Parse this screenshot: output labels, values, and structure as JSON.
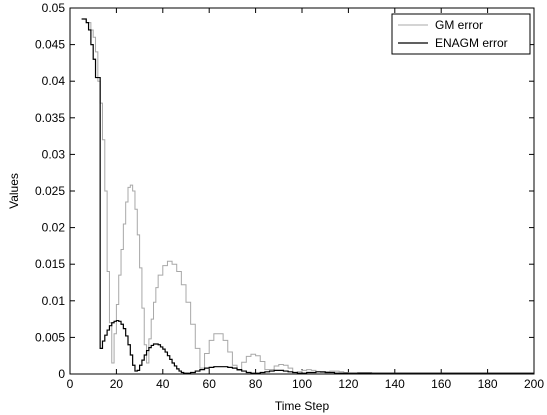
{
  "chart_data": {
    "type": "line",
    "title": "",
    "xlabel": "Time Step",
    "ylabel": "Values",
    "xlim": [
      0,
      200
    ],
    "ylim": [
      0,
      0.05
    ],
    "grid": false,
    "legend_position": "top-right",
    "x_ticks": [
      "0",
      "20",
      "40",
      "60",
      "80",
      "100",
      "120",
      "140",
      "160",
      "180",
      "200"
    ],
    "y_ticks": [
      "0",
      "0.005",
      "0.01",
      "0.015",
      "0.02",
      "0.025",
      "0.03",
      "0.035",
      "0.04",
      "0.045",
      "0.05"
    ],
    "step_style": true,
    "series": [
      {
        "name": "GM error",
        "color": "#a8a8a8",
        "x": [
          5,
          7,
          9,
          10,
          11,
          12,
          13,
          14,
          15,
          16,
          17,
          18,
          19,
          20,
          21,
          22,
          23,
          24,
          25,
          26,
          27,
          28,
          29,
          30,
          31,
          32,
          33,
          34,
          35,
          36,
          37,
          38,
          40,
          42,
          44,
          46,
          48,
          50,
          52,
          54,
          56,
          58,
          60,
          62,
          64,
          66,
          68,
          70,
          72,
          74,
          76,
          78,
          80,
          82,
          84,
          86,
          88,
          90,
          92,
          94,
          96,
          98,
          100,
          102,
          104,
          106,
          108,
          110,
          112,
          114,
          116,
          118,
          120,
          122,
          124,
          126,
          128,
          130,
          132,
          134,
          136,
          138,
          140,
          142,
          144,
          146,
          148,
          150,
          152,
          154,
          156,
          158,
          160,
          162,
          164,
          166,
          168,
          170,
          172,
          174,
          176,
          178,
          180,
          182,
          184,
          186,
          188,
          190,
          192,
          194,
          196,
          198,
          200
        ],
        "y": [
          0.0485,
          0.048,
          0.047,
          0.046,
          0.044,
          0.04,
          0.037,
          0.032,
          0.025,
          0.014,
          0.007,
          0.0015,
          0.0055,
          0.0095,
          0.0135,
          0.017,
          0.0205,
          0.0235,
          0.0255,
          0.0258,
          0.025,
          0.0225,
          0.019,
          0.0145,
          0.009,
          0.004,
          0.0015,
          0.0048,
          0.0075,
          0.0098,
          0.0118,
          0.0135,
          0.0148,
          0.0154,
          0.015,
          0.014,
          0.0122,
          0.0098,
          0.0068,
          0.0035,
          0.0008,
          0.0028,
          0.0046,
          0.0055,
          0.0055,
          0.0046,
          0.003,
          0.0012,
          0.0005,
          0.0016,
          0.0024,
          0.0027,
          0.0025,
          0.0017,
          0.0006,
          0.0006,
          0.0011,
          0.0013,
          0.0012,
          0.0008,
          0.0002,
          0.0003,
          0.0005,
          0.0006,
          0.0005,
          0.0003,
          0.0002,
          0.0003,
          0.0004,
          0.0004,
          0.0003,
          0.0002,
          0.0001,
          0.0001,
          0.0002,
          0.0002,
          0.0002,
          0.0001,
          0.0001,
          0.0001,
          0.0001,
          0.0001,
          0.0001,
          0.0001,
          0.0001,
          0.0001,
          0.0001,
          0.0001,
          0.0001,
          0.0001,
          0.0001,
          0.0001,
          0.0001,
          0.0001,
          0.0001,
          0.0001,
          0.0001,
          0.0001,
          0.0001,
          0.0001,
          0.0001,
          0.0001,
          0.0001,
          0.0001,
          0.0001,
          0.0001,
          0.0001,
          0.0001,
          0.0001,
          0.0001,
          0.0001,
          0.0001,
          0.0001
        ]
      },
      {
        "name": "ENAGM error",
        "color": "#000000",
        "x": [
          5,
          7,
          8,
          9,
          10,
          11,
          12,
          13,
          14,
          15,
          16,
          17,
          18,
          19,
          20,
          21,
          22,
          23,
          24,
          25,
          26,
          27,
          28,
          29,
          30,
          31,
          32,
          33,
          34,
          35,
          36,
          37,
          38,
          39,
          40,
          41,
          42,
          43,
          44,
          45,
          46,
          47,
          48,
          49,
          50,
          52,
          54,
          56,
          58,
          60,
          62,
          64,
          66,
          68,
          70,
          72,
          74,
          76,
          78,
          80,
          82,
          84,
          86,
          88,
          90,
          92,
          94,
          96,
          98,
          100,
          102,
          104,
          106,
          108,
          110,
          112,
          114,
          116,
          118,
          120,
          122,
          124,
          126,
          128,
          130,
          132,
          134,
          136,
          138,
          140,
          145,
          150,
          155,
          160,
          165,
          170,
          175,
          180,
          185,
          190,
          195,
          200
        ],
        "y": [
          0.0485,
          0.048,
          0.047,
          0.045,
          0.043,
          0.0405,
          0.0405,
          0.0035,
          0.0045,
          0.0053,
          0.006,
          0.0066,
          0.007,
          0.0072,
          0.0073,
          0.0072,
          0.0068,
          0.0062,
          0.0052,
          0.004,
          0.0026,
          0.0012,
          0.0004,
          0.0005,
          0.0012,
          0.0019,
          0.0026,
          0.0032,
          0.0036,
          0.0039,
          0.0041,
          0.0041,
          0.004,
          0.0037,
          0.0034,
          0.003,
          0.0025,
          0.002,
          0.0015,
          0.0011,
          0.0007,
          0.0004,
          0.0002,
          0.0001,
          0.0001,
          0.0002,
          0.0004,
          0.0006,
          0.0008,
          0.0009,
          0.001,
          0.001,
          0.001,
          0.0009,
          0.0008,
          0.0006,
          0.0004,
          0.0002,
          0.0001,
          0.0001,
          0.0002,
          0.0003,
          0.0004,
          0.0005,
          0.0005,
          0.0004,
          0.0003,
          0.0002,
          0.0001,
          0.0001,
          0.0002,
          0.0002,
          0.0003,
          0.0003,
          0.0002,
          0.0002,
          0.0001,
          0.0001,
          0.0001,
          0.0001,
          0.0001,
          0.0001,
          0.0001,
          0.0001,
          0.0001,
          0.0001,
          0.0001,
          0.0001,
          0.0001,
          0.0001,
          0.0001,
          0.0001,
          0.0001,
          0.0001,
          0.0001,
          0.0001,
          0.0001,
          0.0001,
          0.0001,
          0.0001,
          0.0001,
          0.0001
        ]
      }
    ]
  }
}
